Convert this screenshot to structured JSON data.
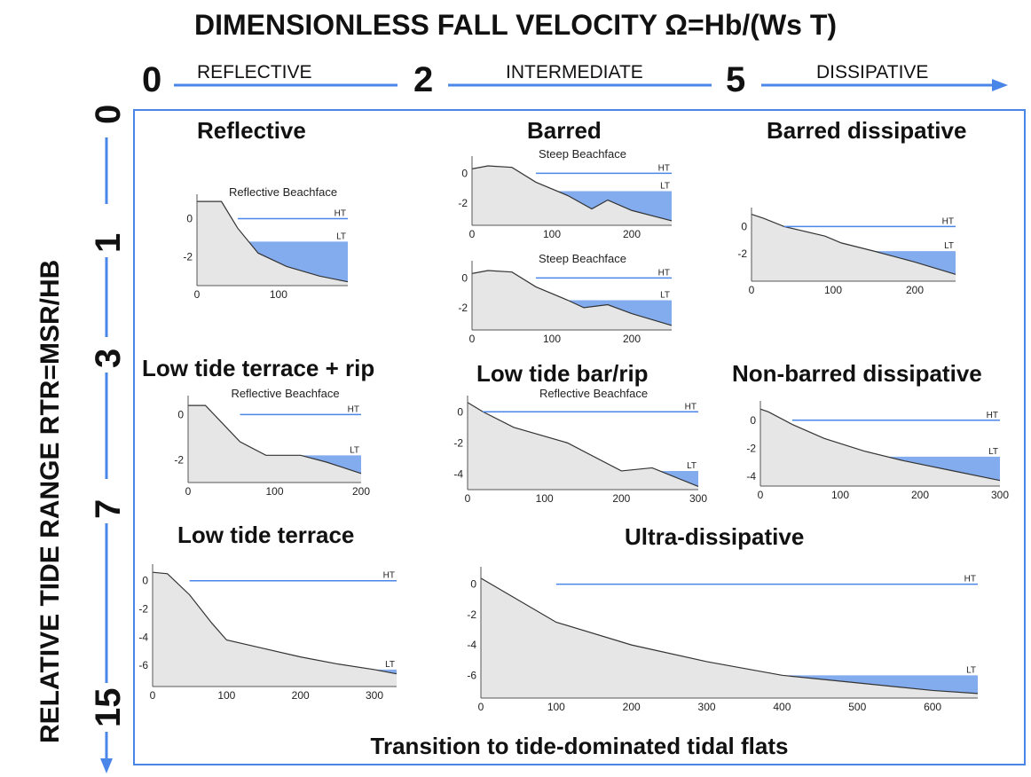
{
  "title": "DIMENSIONLESS FALL VELOCITY  Ω=Hb/(Ws T)",
  "omega_axis": {
    "ticks": [
      "0",
      "2",
      "5"
    ],
    "classes": [
      "REFLECTIVE",
      "INTERMEDIATE",
      "DISSIPATIVE"
    ]
  },
  "rtr_axis": {
    "label": "RELATIVE TIDE RANGE RTR=MSR/HB",
    "ticks": [
      "0",
      "1",
      "3",
      "7",
      "15"
    ]
  },
  "bottom_label": "Transition to tide-dominated tidal flats",
  "colors": {
    "arrow": "#4a86e8",
    "water": "#6d9eeb",
    "beach": "#e6e6e6",
    "frame": "#4a86e8"
  },
  "panels": [
    {
      "id": "reflective",
      "title": "Reflective",
      "profiles": [
        {
          "xmax": 185,
          "xticks": [
            0,
            100
          ],
          "ymin": -3.5,
          "ymax": 1,
          "yticks": [
            0,
            -2
          ],
          "ht": 0,
          "lt": -1.2,
          "label": "Reflective Beachface",
          "ht_label": "HT",
          "lt_label": "LT",
          "profile": [
            [
              0,
              0.9
            ],
            [
              30,
              0.9
            ],
            [
              50,
              -0.5
            ],
            [
              75,
              -1.8
            ],
            [
              110,
              -2.5
            ],
            [
              150,
              -3
            ],
            [
              185,
              -3.3
            ]
          ]
        }
      ]
    },
    {
      "id": "barred",
      "title": "Barred",
      "profiles": [
        {
          "xmax": 250,
          "xticks": [
            0,
            100,
            200
          ],
          "ymin": -3.5,
          "ymax": 0.8,
          "yticks": [
            0,
            -2
          ],
          "ht": 0,
          "lt": -1.2,
          "label": "Steep Beachface",
          "ht_label": "HT",
          "lt_label": "LT",
          "profile": [
            [
              0,
              0.3
            ],
            [
              20,
              0.5
            ],
            [
              50,
              0.4
            ],
            [
              80,
              -0.6
            ],
            [
              120,
              -1.5
            ],
            [
              150,
              -2.4
            ],
            [
              170,
              -1.8
            ],
            [
              200,
              -2.5
            ],
            [
              250,
              -3.2
            ]
          ]
        },
        {
          "xmax": 250,
          "xticks": [
            0,
            100,
            200
          ],
          "ymin": -3.5,
          "ymax": 0.8,
          "yticks": [
            0,
            -2
          ],
          "ht": 0,
          "lt": -1.5,
          "label": "Steep Beachface",
          "ht_label": "HT",
          "lt_label": "LT",
          "profile": [
            [
              0,
              0.3
            ],
            [
              20,
              0.5
            ],
            [
              50,
              0.4
            ],
            [
              80,
              -0.6
            ],
            [
              120,
              -1.5
            ],
            [
              140,
              -2
            ],
            [
              170,
              -1.8
            ],
            [
              200,
              -2.4
            ],
            [
              250,
              -3.2
            ]
          ]
        }
      ]
    },
    {
      "id": "barred-dissipative",
      "title": "Barred dissipative",
      "profiles": [
        {
          "xmax": 250,
          "xticks": [
            0,
            100,
            200
          ],
          "ymin": -4,
          "ymax": 1,
          "yticks": [
            0,
            -2
          ],
          "ht": 0,
          "lt": -1.8,
          "label": "",
          "ht_label": "HT",
          "lt_label": "LT",
          "profile": [
            [
              0,
              0.9
            ],
            [
              15,
              0.6
            ],
            [
              40,
              0
            ],
            [
              90,
              -0.7
            ],
            [
              110,
              -1.2
            ],
            [
              150,
              -1.8
            ],
            [
              200,
              -2.6
            ],
            [
              250,
              -3.5
            ]
          ]
        }
      ]
    },
    {
      "id": "low-tide-terrace-rip",
      "title": "Low tide terrace + rip",
      "profiles": [
        {
          "xmax": 200,
          "xticks": [
            0,
            100,
            200
          ],
          "ymin": -3,
          "ymax": 0.6,
          "yticks": [
            0,
            -2
          ],
          "ht": 0,
          "lt": -1.8,
          "label": "Reflective Beachface",
          "ht_label": "HT",
          "lt_label": "LT",
          "profile": [
            [
              0,
              0.4
            ],
            [
              20,
              0.4
            ],
            [
              60,
              -1.2
            ],
            [
              90,
              -1.8
            ],
            [
              130,
              -1.8
            ],
            [
              160,
              -2.1
            ],
            [
              200,
              -2.6
            ]
          ]
        }
      ]
    },
    {
      "id": "low-tide-bar-rip",
      "title": "Low tide bar/rip",
      "profiles": [
        {
          "xmax": 300,
          "xticks": [
            0,
            100,
            200,
            300
          ],
          "ymin": -5,
          "ymax": 0.7,
          "yticks": [
            0,
            -2,
            -4
          ],
          "ht": 0,
          "lt": -3.8,
          "label": "Reflective Beachface",
          "ht_label": "HT",
          "lt_label": "LT",
          "profile": [
            [
              0,
              0.6
            ],
            [
              20,
              0
            ],
            [
              60,
              -1
            ],
            [
              130,
              -2
            ],
            [
              200,
              -3.8
            ],
            [
              240,
              -3.6
            ],
            [
              270,
              -4.2
            ],
            [
              300,
              -4.8
            ]
          ]
        }
      ]
    },
    {
      "id": "non-barred-dissipative",
      "title": "Non-barred dissipative",
      "profiles": [
        {
          "xmax": 300,
          "xticks": [
            0,
            100,
            200,
            300
          ],
          "ymin": -4.7,
          "ymax": 1,
          "yticks": [
            0,
            -2,
            -4
          ],
          "ht": 0,
          "lt": -2.6,
          "label": "",
          "ht_label": "HT",
          "lt_label": "LT",
          "profile": [
            [
              0,
              0.8
            ],
            [
              10,
              0.6
            ],
            [
              40,
              -0.3
            ],
            [
              80,
              -1.3
            ],
            [
              130,
              -2.2
            ],
            [
              180,
              -2.9
            ],
            [
              240,
              -3.6
            ],
            [
              300,
              -4.3
            ]
          ]
        }
      ]
    },
    {
      "id": "low-tide-terrace",
      "title": "Low tide terrace",
      "profiles": [
        {
          "xmax": 330,
          "xticks": [
            0,
            100,
            200,
            300
          ],
          "ymin": -7.5,
          "ymax": 0.8,
          "yticks": [
            0,
            -2,
            -4,
            -6
          ],
          "ht": 0,
          "lt": -6.3,
          "label": "",
          "ht_label": "HT",
          "lt_label": "LT",
          "profile": [
            [
              0,
              0.6
            ],
            [
              20,
              0.5
            ],
            [
              50,
              -1
            ],
            [
              80,
              -3
            ],
            [
              100,
              -4.2
            ],
            [
              150,
              -4.8
            ],
            [
              200,
              -5.4
            ],
            [
              250,
              -5.9
            ],
            [
              300,
              -6.3
            ],
            [
              330,
              -6.6
            ]
          ]
        }
      ]
    },
    {
      "id": "ultra-dissipative",
      "title": "Ultra-dissipative",
      "profiles": [
        {
          "xmax": 660,
          "xticks": [
            0,
            100,
            200,
            300,
            400,
            500,
            600
          ],
          "ymin": -7.5,
          "ymax": 0.8,
          "yticks": [
            0,
            -2,
            -4,
            -6
          ],
          "ht": 0,
          "lt": -6,
          "label": "",
          "ht_label": "HT",
          "lt_label": "LT",
          "profile": [
            [
              0,
              0.4
            ],
            [
              100,
              -2.5
            ],
            [
              200,
              -4
            ],
            [
              300,
              -5.1
            ],
            [
              400,
              -6
            ],
            [
              500,
              -6.5
            ],
            [
              600,
              -7
            ],
            [
              660,
              -7.2
            ]
          ]
        }
      ]
    }
  ]
}
